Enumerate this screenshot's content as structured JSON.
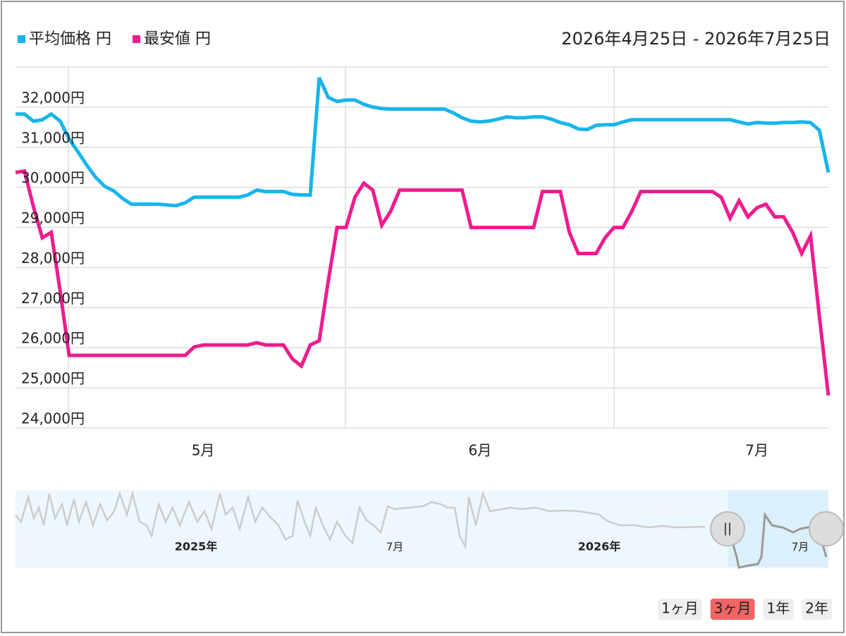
{
  "chart_data": {
    "type": "line",
    "date_range": "2026年4月25日 - 2026年7月25日",
    "categories": [
      null,
      null,
      null,
      null,
      null,
      null,
      null,
      null,
      null,
      null,
      null,
      null,
      null,
      null,
      null,
      null,
      null,
      null,
      null,
      null,
      null,
      "5月",
      null,
      null,
      null,
      null,
      null,
      null,
      null,
      null,
      null,
      null,
      null,
      null,
      null,
      null,
      null,
      null,
      null,
      null,
      null,
      null,
      null,
      null,
      null,
      null,
      null,
      null,
      null,
      null,
      null,
      null,
      "6月",
      null,
      null,
      null,
      null,
      null,
      null,
      null,
      null,
      null,
      null,
      null,
      null,
      null,
      null,
      null,
      null,
      null,
      null,
      null,
      null,
      null,
      null,
      null,
      null,
      null,
      null,
      null,
      null,
      null,
      null,
      "7月",
      null,
      null,
      null,
      null,
      null,
      null,
      null,
      null
    ],
    "series": [
      {
        "name": "平均価格 円",
        "color": "#18b5ea",
        "values": [
          31825,
          31825,
          31650,
          31685,
          31825,
          31650,
          31210,
          30880,
          30545,
          30245,
          30020,
          29910,
          29720,
          29580,
          29580,
          29580,
          29580,
          29560,
          29545,
          29615,
          29755,
          29755,
          29755,
          29755,
          29755,
          29755,
          29810,
          29930,
          29895,
          29895,
          29895,
          29825,
          29810,
          29810,
          32735,
          32245,
          32140,
          32175,
          32175,
          32070,
          32000,
          31965,
          31950,
          31950,
          31950,
          31950,
          31950,
          31950,
          31950,
          31860,
          31735,
          31650,
          31630,
          31650,
          31700,
          31755,
          31735,
          31735,
          31755,
          31755,
          31700,
          31615,
          31560,
          31455,
          31440,
          31545,
          31560,
          31560,
          31630,
          31685,
          31685,
          31685,
          31685,
          31685,
          31685,
          31685,
          31685,
          31685,
          31685,
          31685,
          31685,
          31630,
          31580,
          31615,
          31600,
          31600,
          31615,
          31615,
          31630,
          31615,
          31420,
          30370
        ]
      },
      {
        "name": "最安値 円",
        "color": "#ee1c8e",
        "values": [
          30370,
          30405,
          29525,
          28740,
          28880,
          27405,
          25810,
          25810,
          25810,
          25810,
          25810,
          25810,
          25810,
          25810,
          25810,
          25810,
          25810,
          25810,
          25810,
          25810,
          26020,
          26070,
          26070,
          26070,
          26070,
          26070,
          26070,
          26125,
          26070,
          26070,
          26070,
          25720,
          25545,
          26070,
          26175,
          27650,
          29000,
          29000,
          29755,
          30105,
          29930,
          29055,
          29405,
          29930,
          29930,
          29930,
          29930,
          29930,
          29930,
          29930,
          29930,
          29000,
          29000,
          29000,
          29000,
          29000,
          29000,
          29000,
          29000,
          29895,
          29895,
          29895,
          28880,
          28350,
          28350,
          28350,
          28740,
          29000,
          29000,
          29405,
          29895,
          29895,
          29895,
          29895,
          29895,
          29895,
          29895,
          29895,
          29895,
          29755,
          29230,
          29665,
          29265,
          29490,
          29580,
          29265,
          29265,
          28880,
          28350,
          28790,
          26775,
          24810
        ]
      }
    ],
    "ylim": [
      24000,
      33000
    ],
    "yticks": [
      {
        "value": 24000,
        "label": "24,000円"
      },
      {
        "value": 25000,
        "label": "25,000円"
      },
      {
        "value": 26000,
        "label": "26,000円"
      },
      {
        "value": 27000,
        "label": "27,000円"
      },
      {
        "value": 28000,
        "label": "28,000円"
      },
      {
        "value": 29000,
        "label": "29,000円"
      },
      {
        "value": 30000,
        "label": "30,000円"
      },
      {
        "value": 31000,
        "label": "31,000円"
      },
      {
        "value": 32000,
        "label": "32,000円"
      }
    ],
    "grid": true,
    "navigator": {
      "labels": [
        "2025年",
        "7月",
        "2026年",
        "7月"
      ]
    },
    "range_buttons": [
      "1ヶ月",
      "3ヶ月",
      "1年",
      "2年"
    ],
    "selected_button": 1
  }
}
